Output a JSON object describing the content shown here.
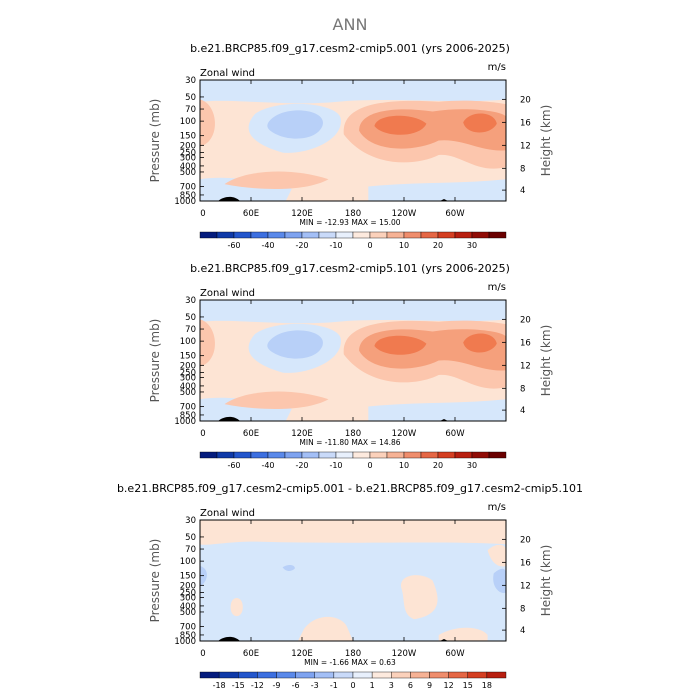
{
  "page_title": "ANN",
  "colors": {
    "pos1": "#fde4d4",
    "pos2": "#fcc6ad",
    "pos3": "#f5a07c",
    "pos4": "#f07a4f",
    "neg1": "#d6e7fb",
    "neg2": "#b8d0f8",
    "neg3": "#92b4f2",
    "frame": "#000000",
    "terrain": "#000000"
  },
  "chart_data": [
    {
      "type": "heatmap",
      "title": "b.e21.BRCP85.f09_g17.cesm2-cmip5.001 (yrs 2006-2025)",
      "left_label": "Zonal wind",
      "units": "m/s",
      "ylabel": "Pressure (mb)",
      "y2label": "Height (km)",
      "x_ticks": [
        "0",
        "60E",
        "120E",
        "180",
        "120W",
        "60W"
      ],
      "y_ticks": [
        "30",
        "50",
        "70",
        "100",
        "150",
        "200",
        "250",
        "300",
        "400",
        "500",
        "700",
        "850",
        "1000"
      ],
      "y2_ticks": [
        "20",
        "16",
        "12",
        "8",
        "4"
      ],
      "stats": "MIN = -12.93   MAX = 15.00",
      "min": -12.93,
      "max": 15.0,
      "colorbar_labels": [
        "-60",
        "-40",
        "-20",
        "-10",
        "0",
        "10",
        "20",
        "30"
      ],
      "colorbar_colors": [
        "#051c7d",
        "#0f3aa8",
        "#2356cc",
        "#3c6fe0",
        "#5a89ea",
        "#7ea3f0",
        "#a3bff6",
        "#c9daf9",
        "#e8f0fc",
        "#fdeade",
        "#fbd1bb",
        "#f6b295",
        "#ef8d6c",
        "#e56745",
        "#d43f22",
        "#b81f10",
        "#900c06",
        "#6a0000"
      ]
    },
    {
      "type": "heatmap",
      "title": "b.e21.BRCP85.f09_g17.cesm2-cmip5.101 (yrs 2006-2025)",
      "left_label": "Zonal wind",
      "units": "m/s",
      "ylabel": "Pressure (mb)",
      "y2label": "Height (km)",
      "x_ticks": [
        "0",
        "60E",
        "120E",
        "180",
        "120W",
        "60W"
      ],
      "y_ticks": [
        "30",
        "50",
        "70",
        "100",
        "150",
        "200",
        "250",
        "300",
        "400",
        "500",
        "700",
        "850",
        "1000"
      ],
      "y2_ticks": [
        "20",
        "16",
        "12",
        "8",
        "4"
      ],
      "stats": "MIN = -11.80   MAX = 14.86",
      "min": -11.8,
      "max": 14.86,
      "colorbar_labels": [
        "-60",
        "-40",
        "-20",
        "-10",
        "0",
        "10",
        "20",
        "30"
      ],
      "colorbar_colors": [
        "#051c7d",
        "#0f3aa8",
        "#2356cc",
        "#3c6fe0",
        "#5a89ea",
        "#7ea3f0",
        "#a3bff6",
        "#c9daf9",
        "#e8f0fc",
        "#fdeade",
        "#fbd1bb",
        "#f6b295",
        "#ef8d6c",
        "#e56745",
        "#d43f22",
        "#b81f10",
        "#900c06",
        "#6a0000"
      ]
    },
    {
      "type": "heatmap",
      "title": "b.e21.BRCP85.f09_g17.cesm2-cmip5.001 - b.e21.BRCP85.f09_g17.cesm2-cmip5.101",
      "left_label": "Zonal wind",
      "units": "m/s",
      "ylabel": "Pressure (mb)",
      "y2label": "Height (km)",
      "x_ticks": [
        "0",
        "60E",
        "120E",
        "180",
        "120W",
        "60W"
      ],
      "y_ticks": [
        "30",
        "50",
        "70",
        "100",
        "150",
        "200",
        "250",
        "300",
        "400",
        "500",
        "700",
        "850",
        "1000"
      ],
      "y2_ticks": [
        "20",
        "16",
        "12",
        "8",
        "4"
      ],
      "stats": "MIN = -1.66   MAX = 0.63",
      "min": -1.66,
      "max": 0.63,
      "colorbar_labels": [
        "-18",
        "-15",
        "-12",
        "-9",
        "-6",
        "-3",
        "-1",
        "0",
        "1",
        "3",
        "6",
        "9",
        "12",
        "15",
        "18"
      ],
      "colorbar_colors": [
        "#051c7d",
        "#0f3aa8",
        "#2356cc",
        "#3c6fe0",
        "#5a89ea",
        "#7ea3f0",
        "#a3bff6",
        "#c9daf9",
        "#e8f0fc",
        "#fdeade",
        "#fbd1bb",
        "#f6b295",
        "#ef8d6c",
        "#e56745",
        "#d43f22",
        "#b81f10"
      ]
    }
  ]
}
